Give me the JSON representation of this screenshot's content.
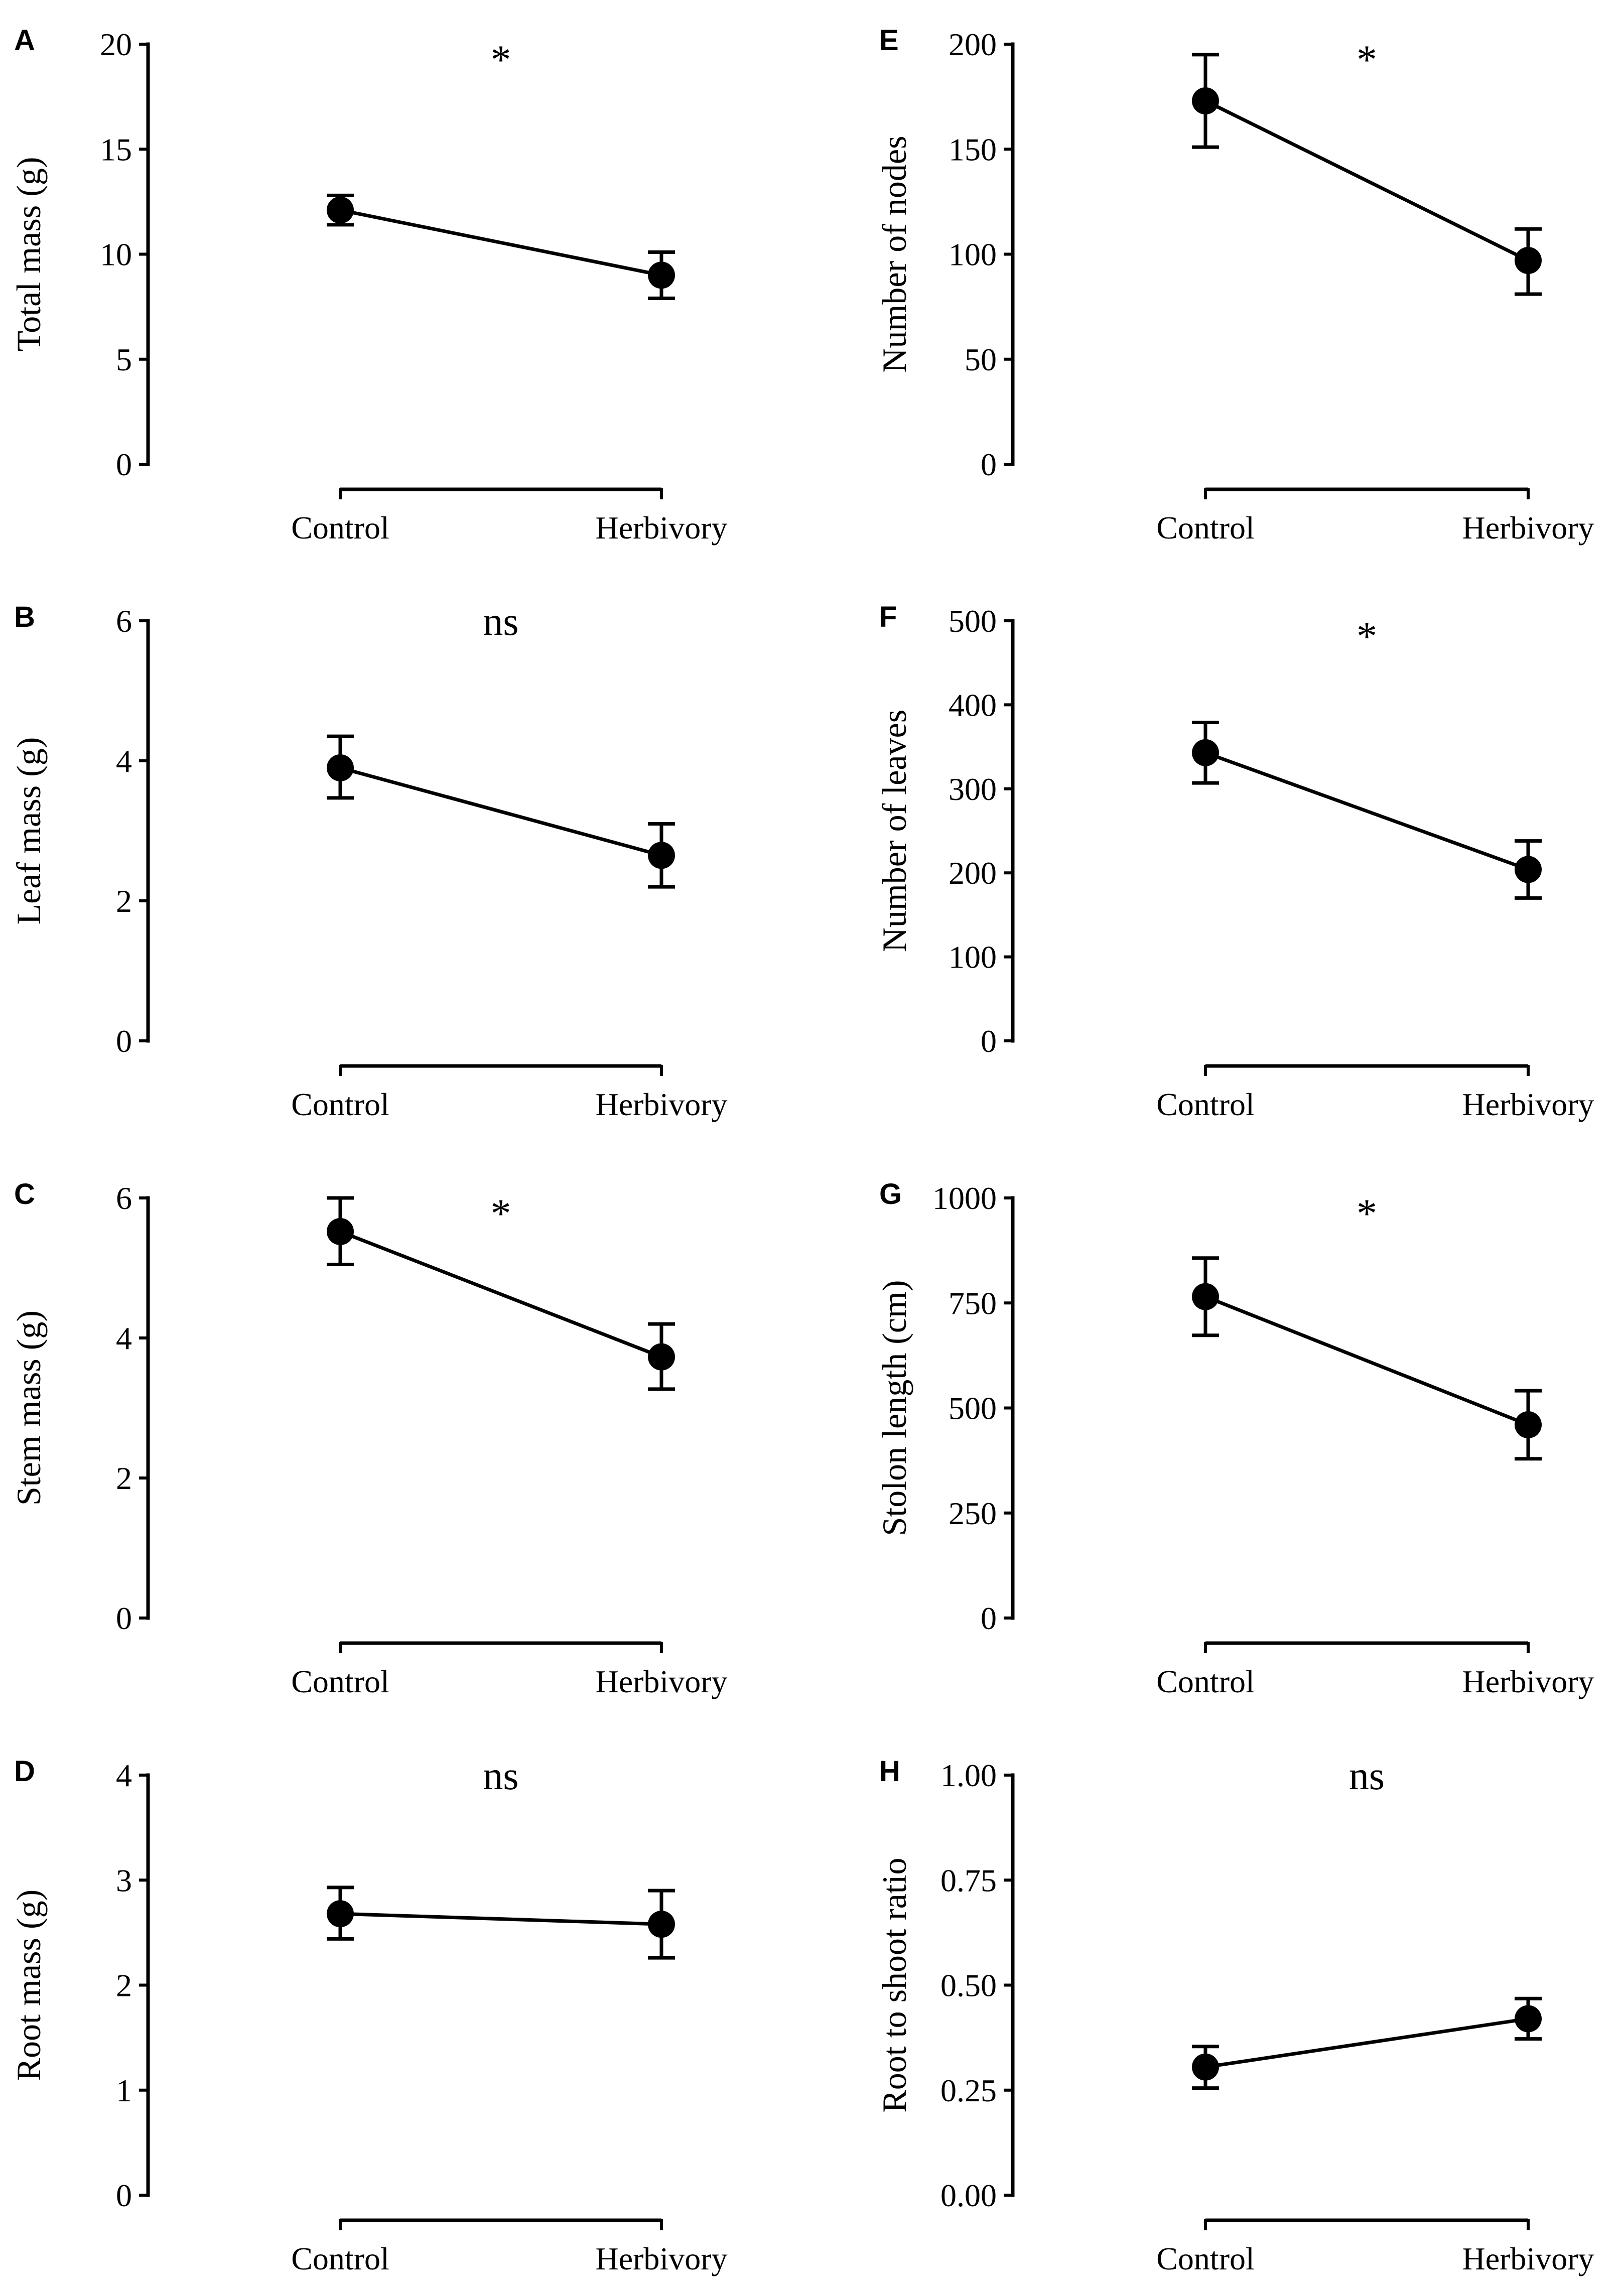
{
  "colors": {
    "ink": "#000000",
    "background": "#ffffff"
  },
  "chart_data": [
    {
      "panel": "A",
      "type": "line",
      "ylabel": "Total mass (g)",
      "ylim": [
        0,
        20
      ],
      "yticks": [
        "0",
        "5",
        "10",
        "15",
        "20"
      ],
      "categories": [
        "Control",
        "Herbivory"
      ],
      "values": [
        12.1,
        9.0
      ],
      "error_low": [
        11.4,
        7.9
      ],
      "error_high": [
        12.8,
        10.1
      ],
      "significance": "*"
    },
    {
      "panel": "B",
      "type": "line",
      "ylabel": "Leaf mass (g)",
      "ylim": [
        0,
        6
      ],
      "yticks": [
        "0",
        "2",
        "4",
        "6"
      ],
      "categories": [
        "Control",
        "Herbivory"
      ],
      "values": [
        3.9,
        2.65
      ],
      "error_low": [
        3.47,
        2.2
      ],
      "error_high": [
        4.35,
        3.1
      ],
      "significance": "ns"
    },
    {
      "panel": "C",
      "type": "line",
      "ylabel": "Stem mass (g)",
      "ylim": [
        0,
        6
      ],
      "yticks": [
        "0",
        "2",
        "4",
        "6"
      ],
      "categories": [
        "Control",
        "Herbivory"
      ],
      "values": [
        5.52,
        3.73
      ],
      "error_low": [
        5.05,
        3.27
      ],
      "error_high": [
        6.0,
        4.2
      ],
      "significance": "*"
    },
    {
      "panel": "D",
      "type": "line",
      "ylabel": "Root mass (g)",
      "ylim": [
        0,
        4
      ],
      "yticks": [
        "0",
        "1",
        "2",
        "3",
        "4"
      ],
      "categories": [
        "Control",
        "Herbivory"
      ],
      "values": [
        2.68,
        2.58
      ],
      "error_low": [
        2.44,
        2.26
      ],
      "error_high": [
        2.93,
        2.9
      ],
      "significance": "ns"
    },
    {
      "panel": "E",
      "type": "line",
      "ylabel": "Number of nodes",
      "ylim": [
        0,
        200
      ],
      "yticks": [
        "0",
        "50",
        "100",
        "150",
        "200"
      ],
      "categories": [
        "Control",
        "Herbivory"
      ],
      "values": [
        173,
        97
      ],
      "error_low": [
        151,
        81
      ],
      "error_high": [
        195,
        112
      ],
      "significance": "*"
    },
    {
      "panel": "F",
      "type": "line",
      "ylabel": "Number of leaves",
      "ylim": [
        0,
        500
      ],
      "yticks": [
        "0",
        "100",
        "200",
        "300",
        "400",
        "500"
      ],
      "categories": [
        "Control",
        "Herbivory"
      ],
      "values": [
        343,
        204
      ],
      "error_low": [
        307,
        170
      ],
      "error_high": [
        379,
        238
      ],
      "significance": "*"
    },
    {
      "panel": "G",
      "type": "line",
      "ylabel": "Stolon length (cm)",
      "ylim": [
        0,
        1000
      ],
      "yticks": [
        "0",
        "250",
        "500",
        "750",
        "1000"
      ],
      "categories": [
        "Control",
        "Herbivory"
      ],
      "values": [
        765,
        460
      ],
      "error_low": [
        673,
        379
      ],
      "error_high": [
        857,
        541
      ],
      "significance": "*"
    },
    {
      "panel": "H",
      "type": "line",
      "ylabel": "Root to shoot ratio",
      "ylim": [
        0,
        1
      ],
      "yticks": [
        "0.00",
        "0.25",
        "0.50",
        "0.75",
        "1.00"
      ],
      "categories": [
        "Control",
        "Herbivory"
      ],
      "values": [
        0.305,
        0.42
      ],
      "error_low": [
        0.255,
        0.372
      ],
      "error_high": [
        0.354,
        0.468
      ],
      "significance": "ns"
    }
  ]
}
